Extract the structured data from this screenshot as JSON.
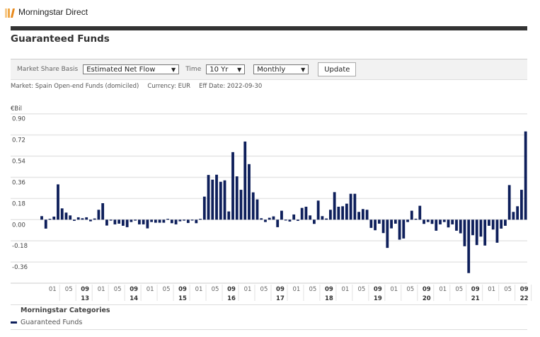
{
  "app": {
    "title": "Morningstar Direct"
  },
  "page_title": "Guaranteed Funds",
  "toolbar": {
    "basis_label": "Market Share Basis",
    "basis_value": "Estimated Net Flow",
    "time_label": "Time",
    "time_value": "10 Yr",
    "frequency_value": "Monthly",
    "update_label": "Update"
  },
  "meta": {
    "market": "Market: Spain Open-end Funds (domiciled)",
    "currency": "Currency: EUR",
    "eff_date": "Eff Date: 2022-09-30"
  },
  "legend": {
    "title": "Morningstar Categories",
    "items": [
      "Guaranteed Funds"
    ]
  },
  "colors": {
    "bar": "#0e1f5b",
    "grid": "#e6e6e6"
  },
  "chart_data": {
    "type": "bar",
    "ylabel": "€Bil",
    "ylim": [
      -0.54,
      0.9
    ],
    "yticks": [
      "0.90",
      "0.72",
      "0.54",
      "0.36",
      "0.18",
      "0.00",
      "-0.18",
      "-0.36"
    ],
    "ytick_values": [
      0.9,
      0.72,
      0.54,
      0.36,
      0.18,
      0.0,
      -0.18,
      -0.36
    ],
    "start": "2012-10",
    "end": "2022-09",
    "x_month_labels": [
      "01",
      "05",
      "09"
    ],
    "x_year_labels": [
      "13",
      "14",
      "15",
      "16",
      "17",
      "18",
      "19",
      "20",
      "21",
      "22"
    ],
    "grid": true,
    "series": [
      {
        "name": "Guaranteed Funds",
        "values": [
          0.03,
          -0.076,
          0.0,
          0.026,
          0.3,
          0.096,
          0.06,
          0.036,
          -0.01,
          0.02,
          0.012,
          0.02,
          -0.014,
          0.01,
          0.084,
          0.14,
          -0.05,
          -0.008,
          -0.04,
          -0.034,
          -0.052,
          -0.064,
          -0.02,
          -0.008,
          -0.04,
          -0.04,
          -0.074,
          -0.02,
          -0.026,
          -0.026,
          -0.026,
          0.0,
          -0.03,
          -0.04,
          -0.014,
          -0.008,
          -0.028,
          -0.002,
          -0.03,
          0.006,
          0.196,
          0.38,
          0.34,
          0.382,
          0.322,
          0.334,
          0.07,
          0.574,
          0.368,
          0.254,
          0.664,
          0.472,
          0.232,
          0.172,
          0.012,
          -0.02,
          0.016,
          0.028,
          -0.064,
          0.076,
          -0.004,
          -0.016,
          0.044,
          -0.01,
          0.1,
          0.11,
          0.036,
          -0.036,
          0.162,
          0.03,
          0.01,
          0.084,
          0.234,
          0.11,
          0.114,
          0.136,
          0.22,
          0.22,
          0.066,
          0.09,
          0.084,
          -0.07,
          -0.09,
          -0.034,
          -0.114,
          -0.24,
          -0.074,
          -0.034,
          -0.17,
          -0.16,
          -0.02,
          0.076,
          0.008,
          0.118,
          -0.036,
          -0.02,
          -0.036,
          -0.094,
          -0.04,
          -0.02,
          -0.066,
          -0.04,
          -0.094,
          -0.116,
          -0.226,
          -0.454,
          -0.132,
          -0.216,
          -0.144,
          -0.22,
          -0.052,
          -0.084,
          -0.196,
          -0.076,
          -0.052,
          0.294,
          0.066,
          0.114,
          0.254,
          0.75
        ]
      }
    ]
  }
}
